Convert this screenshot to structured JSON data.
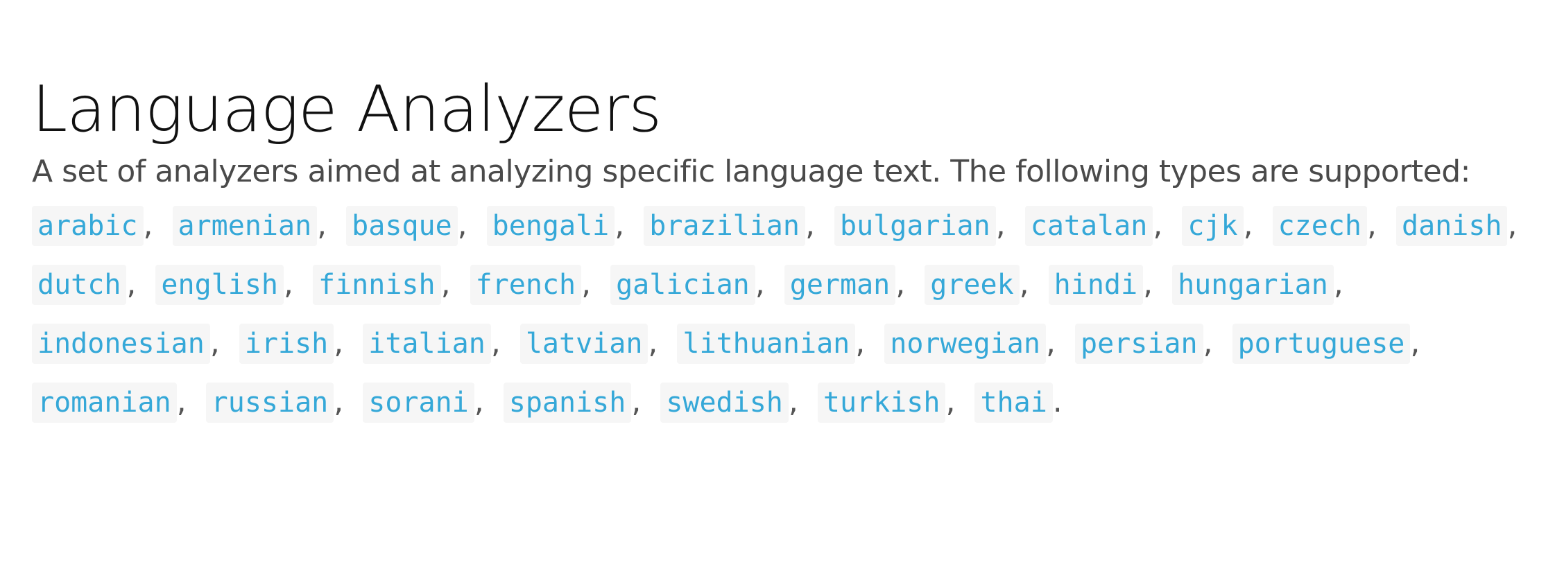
{
  "heading": "Language Analyzers",
  "description": "A set of analyzers aimed at analyzing specific language text. The following types are supported:",
  "languages": [
    {
      "code": "arabic",
      "sep": ","
    },
    {
      "code": "armenian",
      "sep": ","
    },
    {
      "code": "basque",
      "sep": ","
    },
    {
      "code": "bengali",
      "sep": ","
    },
    {
      "code": "brazilian",
      "sep": ","
    },
    {
      "code": "bulgarian",
      "sep": ","
    },
    {
      "code": "catalan",
      "sep": ","
    },
    {
      "code": "cjk",
      "sep": ","
    },
    {
      "code": "czech",
      "sep": ","
    },
    {
      "code": "danish",
      "sep": ","
    },
    {
      "code": "dutch",
      "sep": ","
    },
    {
      "code": "english",
      "sep": ","
    },
    {
      "code": "finnish",
      "sep": ","
    },
    {
      "code": "french",
      "sep": ","
    },
    {
      "code": "galician",
      "sep": ","
    },
    {
      "code": "german",
      "sep": ","
    },
    {
      "code": "greek",
      "sep": ","
    },
    {
      "code": "hindi",
      "sep": ","
    },
    {
      "code": "hungarian",
      "sep": ","
    },
    {
      "code": "indonesian",
      "sep": ","
    },
    {
      "code": "irish",
      "sep": ","
    },
    {
      "code": "italian",
      "sep": ","
    },
    {
      "code": "latvian",
      "sep": ","
    },
    {
      "code": "lithuanian",
      "sep": ","
    },
    {
      "code": "norwegian",
      "sep": ","
    },
    {
      "code": "persian",
      "sep": ","
    },
    {
      "code": "portuguese",
      "sep": ","
    },
    {
      "code": "romanian",
      "sep": ","
    },
    {
      "code": "russian",
      "sep": ","
    },
    {
      "code": "sorani",
      "sep": ","
    },
    {
      "code": "spanish",
      "sep": ","
    },
    {
      "code": "swedish",
      "sep": ","
    },
    {
      "code": "turkish",
      "sep": ","
    },
    {
      "code": "thai",
      "sep": "."
    }
  ],
  "colors": {
    "code_text": "#35a8d8",
    "code_background": "#f6f6f6",
    "heading": "#111111",
    "body_text": "#4a4a4a"
  }
}
